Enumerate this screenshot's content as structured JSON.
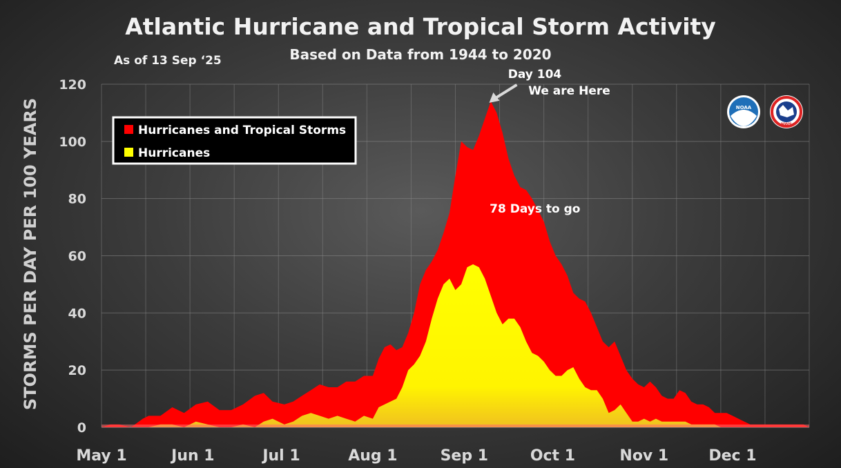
{
  "chart_data": {
    "type": "area",
    "title": "Atlantic Hurricane and Tropical Storm Activity",
    "subtitle": "Based on Data from 1944 to 2020",
    "as_of": "As of 13 Sep ‘25",
    "ylabel": "STORMS PER DAY PER 100 YEARS",
    "xlabel": "",
    "ylim": [
      0,
      120
    ],
    "y_ticks": [
      0,
      20,
      40,
      60,
      80,
      100,
      120
    ],
    "x_range": [
      0,
      240
    ],
    "x_ticks": [
      {
        "label": "May 1",
        "day": 0
      },
      {
        "label": "Jun 1",
        "day": 31
      },
      {
        "label": "Jul 1",
        "day": 61
      },
      {
        "label": "Aug 1",
        "day": 92
      },
      {
        "label": "Sep 1",
        "day": 123
      },
      {
        "label": "Oct 1",
        "day": 153
      },
      {
        "label": "Nov 1",
        "day": 184
      },
      {
        "label": "Dec 1",
        "day": 214
      }
    ],
    "grid": true,
    "legend_position": "top-left",
    "series": [
      {
        "name": "Hurricanes and Tropical Storms",
        "color": "#ff0000",
        "x": [
          0,
          3,
          6,
          10,
          14,
          16,
          20,
          24,
          26,
          28,
          32,
          36,
          40,
          44,
          48,
          52,
          55,
          58,
          62,
          65,
          68,
          71,
          74,
          77,
          80,
          83,
          86,
          89,
          92,
          94,
          96,
          98,
          100,
          102,
          104,
          106,
          108,
          110,
          112,
          114,
          116,
          118,
          120,
          122,
          124,
          126,
          128,
          130,
          132,
          134,
          136,
          138,
          140,
          142,
          144,
          146,
          148,
          150,
          152,
          154,
          156,
          158,
          160,
          162,
          164,
          166,
          168,
          170,
          172,
          174,
          176,
          178,
          180,
          182,
          184,
          186,
          188,
          190,
          192,
          194,
          196,
          198,
          200,
          202,
          204,
          206,
          208,
          210,
          212,
          214,
          216,
          218,
          220,
          222,
          224,
          226,
          228,
          230,
          232,
          234,
          236,
          238,
          240
        ],
        "values": [
          0,
          1,
          1,
          0,
          3,
          4,
          4,
          7,
          6,
          5,
          8,
          9,
          6,
          6,
          8,
          11,
          12,
          9,
          8,
          9,
          11,
          13,
          15,
          14,
          14,
          16,
          16,
          18,
          18,
          24,
          28,
          29,
          27,
          28,
          33,
          40,
          50,
          55,
          58,
          62,
          68,
          75,
          88,
          100,
          98,
          97,
          102,
          108,
          114,
          110,
          103,
          94,
          88,
          84,
          83,
          80,
          76,
          72,
          65,
          60,
          57,
          53,
          47,
          45,
          44,
          40,
          35,
          30,
          28,
          30,
          25,
          20,
          17,
          15,
          14,
          16,
          14,
          11,
          10,
          10,
          13,
          12,
          9,
          8,
          8,
          7,
          5,
          5,
          5,
          4,
          3,
          2,
          1,
          1,
          1,
          1,
          1,
          1,
          1,
          1,
          1,
          1,
          0
        ]
      },
      {
        "name": "Hurricanes",
        "color": "#ffff00",
        "x": [
          0,
          6,
          12,
          16,
          20,
          24,
          28,
          32,
          36,
          40,
          44,
          48,
          52,
          55,
          58,
          62,
          65,
          68,
          71,
          74,
          77,
          80,
          83,
          86,
          89,
          92,
          94,
          96,
          98,
          100,
          102,
          104,
          106,
          108,
          110,
          112,
          114,
          116,
          118,
          120,
          122,
          124,
          126,
          128,
          130,
          132,
          134,
          136,
          138,
          140,
          142,
          144,
          146,
          148,
          150,
          152,
          154,
          156,
          158,
          160,
          162,
          164,
          166,
          168,
          170,
          172,
          174,
          176,
          178,
          180,
          182,
          184,
          186,
          188,
          190,
          192,
          194,
          196,
          198,
          200,
          202,
          204,
          206,
          208,
          210,
          212,
          214,
          216,
          218,
          220,
          222,
          224,
          226,
          228,
          230,
          232,
          234,
          236,
          238,
          240
        ],
        "values": [
          0,
          0,
          0,
          0,
          1,
          1,
          0,
          2,
          1,
          0,
          0,
          1,
          0,
          2,
          3,
          1,
          2,
          4,
          5,
          4,
          3,
          4,
          3,
          2,
          4,
          3,
          7,
          8,
          9,
          10,
          14,
          20,
          22,
          25,
          30,
          38,
          45,
          50,
          52,
          48,
          50,
          56,
          57,
          56,
          52,
          46,
          40,
          36,
          38,
          38,
          35,
          30,
          26,
          25,
          23,
          20,
          18,
          18,
          20,
          21,
          17,
          14,
          13,
          13,
          10,
          5,
          6,
          8,
          5,
          2,
          2,
          3,
          2,
          3,
          2,
          2,
          2,
          2,
          2,
          1,
          1,
          1,
          1,
          1,
          0,
          0,
          0,
          0,
          0,
          0,
          0,
          0,
          0,
          0,
          0,
          0,
          0,
          0,
          0,
          0
        ]
      }
    ],
    "annotations": [
      {
        "line1": "Day 104",
        "line2": "We are Here",
        "day": 131,
        "value": 114
      },
      {
        "text": "78 Days to go",
        "day": 147,
        "value": 78
      }
    ]
  },
  "logos": [
    {
      "name": "NOAA",
      "text": "NOAA"
    },
    {
      "name": "National Weather Service",
      "text": "NWS"
    }
  ],
  "colors": {
    "grid": "#8a8a8a",
    "tick": "#d9d9d9"
  }
}
